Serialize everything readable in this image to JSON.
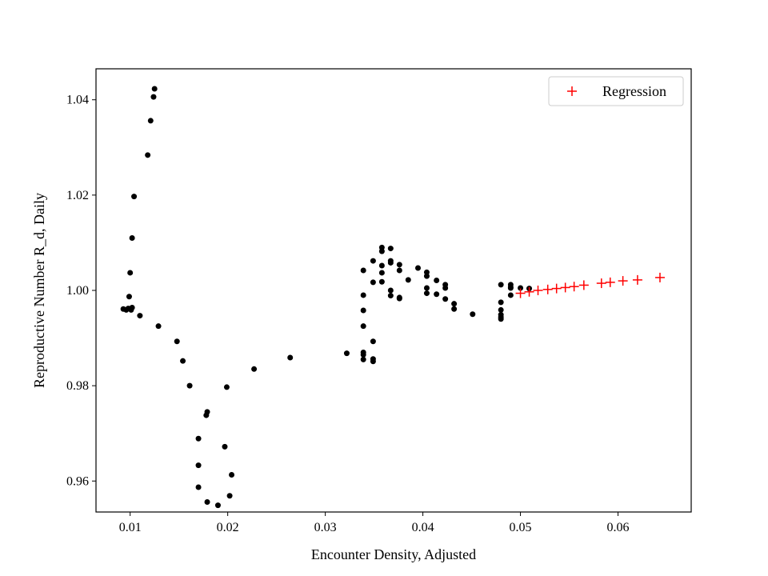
{
  "chart_data": {
    "type": "scatter",
    "xlabel": "Encounter Density, Adjusted",
    "ylabel": "Reproductive Number R_d, Daily",
    "xlim": [
      0.0065,
      0.0675
    ],
    "ylim": [
      0.9535,
      1.0465
    ],
    "x_ticks": [
      0.01,
      0.02,
      0.03,
      0.04,
      0.05,
      0.06
    ],
    "x_tick_labels": [
      "0.01",
      "0.02",
      "0.03",
      "0.04",
      "0.05",
      "0.06"
    ],
    "y_ticks": [
      0.96,
      0.98,
      1.0,
      1.02,
      1.04
    ],
    "y_tick_labels": [
      "0.96",
      "0.98",
      "1.00",
      "1.02",
      "1.04"
    ],
    "grid": false,
    "legend_position": "upper-right",
    "colors": {
      "observed": "#000000",
      "regression": "#ff0000"
    },
    "series": [
      {
        "marker": "dot",
        "color": "#000000",
        "points": [
          [
            0.0093,
            0.9961
          ],
          [
            0.0096,
            0.9959
          ],
          [
            0.0098,
            0.9962
          ],
          [
            0.0101,
            0.9959
          ],
          [
            0.0102,
            0.9964
          ],
          [
            0.0099,
            0.9987
          ],
          [
            0.01,
            1.0037
          ],
          [
            0.0102,
            1.011
          ],
          [
            0.0104,
            1.0197
          ],
          [
            0.011,
            0.9947
          ],
          [
            0.0118,
            1.0284
          ],
          [
            0.0121,
            1.0356
          ],
          [
            0.0124,
            1.0406
          ],
          [
            0.0125,
            1.0423
          ],
          [
            0.0129,
            0.9925
          ],
          [
            0.0148,
            0.9893
          ],
          [
            0.0154,
            0.9852
          ],
          [
            0.0161,
            0.98
          ],
          [
            0.017,
            0.9689
          ],
          [
            0.017,
            0.9633
          ],
          [
            0.017,
            0.9587
          ],
          [
            0.0178,
            0.9738
          ],
          [
            0.0179,
            0.9745
          ],
          [
            0.0179,
            0.9556
          ],
          [
            0.019,
            0.9549
          ],
          [
            0.0197,
            0.9672
          ],
          [
            0.0199,
            0.9797
          ],
          [
            0.0202,
            0.9569
          ],
          [
            0.0204,
            0.9613
          ],
          [
            0.0227,
            0.9835
          ],
          [
            0.0264,
            0.9859
          ],
          [
            0.0322,
            0.9868
          ],
          [
            0.0339,
            1.0042
          ],
          [
            0.0339,
            0.999
          ],
          [
            0.0339,
            0.9958
          ],
          [
            0.0339,
            0.9925
          ],
          [
            0.0339,
            0.987
          ],
          [
            0.0339,
            0.9865
          ],
          [
            0.0339,
            0.9855
          ],
          [
            0.0349,
            1.0062
          ],
          [
            0.0349,
            1.0017
          ],
          [
            0.0349,
            0.9893
          ],
          [
            0.0349,
            0.9856
          ],
          [
            0.0349,
            0.9851
          ],
          [
            0.0358,
            1.009
          ],
          [
            0.0358,
            1.0082
          ],
          [
            0.0358,
            1.0052
          ],
          [
            0.0358,
            1.0037
          ],
          [
            0.0358,
            1.0018
          ],
          [
            0.0367,
            1.0088
          ],
          [
            0.0367,
            1.0062
          ],
          [
            0.0367,
            1.0058
          ],
          [
            0.0367,
            1.0
          ],
          [
            0.0367,
            0.9989
          ],
          [
            0.0376,
            1.0054
          ],
          [
            0.0376,
            1.0042
          ],
          [
            0.0376,
            0.9985
          ],
          [
            0.0376,
            0.9983
          ],
          [
            0.0385,
            1.0022
          ],
          [
            0.0395,
            1.0047
          ],
          [
            0.0404,
            1.0038
          ],
          [
            0.0404,
            1.003
          ],
          [
            0.0404,
            1.0005
          ],
          [
            0.0404,
            0.9994
          ],
          [
            0.0414,
            1.0021
          ],
          [
            0.0414,
            0.9992
          ],
          [
            0.0423,
            1.0012
          ],
          [
            0.0423,
            1.0005
          ],
          [
            0.0423,
            0.9982
          ],
          [
            0.0432,
            0.9972
          ],
          [
            0.0432,
            0.9961
          ],
          [
            0.0451,
            0.995
          ],
          [
            0.048,
            1.0012
          ],
          [
            0.048,
            0.9975
          ],
          [
            0.048,
            0.9959
          ],
          [
            0.048,
            0.9949
          ],
          [
            0.048,
            0.9944
          ],
          [
            0.048,
            0.994
          ],
          [
            0.049,
            1.0012
          ],
          [
            0.049,
            1.0007
          ],
          [
            0.049,
            1.0005
          ],
          [
            0.049,
            0.999
          ],
          [
            0.05,
            1.0005
          ],
          [
            0.0509,
            1.0004
          ]
        ]
      },
      {
        "name": "Regression",
        "marker": "plus",
        "color": "#ff0000",
        "points": [
          [
            0.05,
            0.9994
          ],
          [
            0.0509,
            0.9997
          ],
          [
            0.0518,
            1.0
          ],
          [
            0.0528,
            1.0002
          ],
          [
            0.0537,
            1.0004
          ],
          [
            0.0546,
            1.0006
          ],
          [
            0.0555,
            1.0008
          ],
          [
            0.0565,
            1.0011
          ],
          [
            0.0583,
            1.0015
          ],
          [
            0.0592,
            1.0017
          ],
          [
            0.0605,
            1.002
          ],
          [
            0.062,
            1.0022
          ],
          [
            0.0643,
            1.0027
          ]
        ]
      }
    ]
  }
}
